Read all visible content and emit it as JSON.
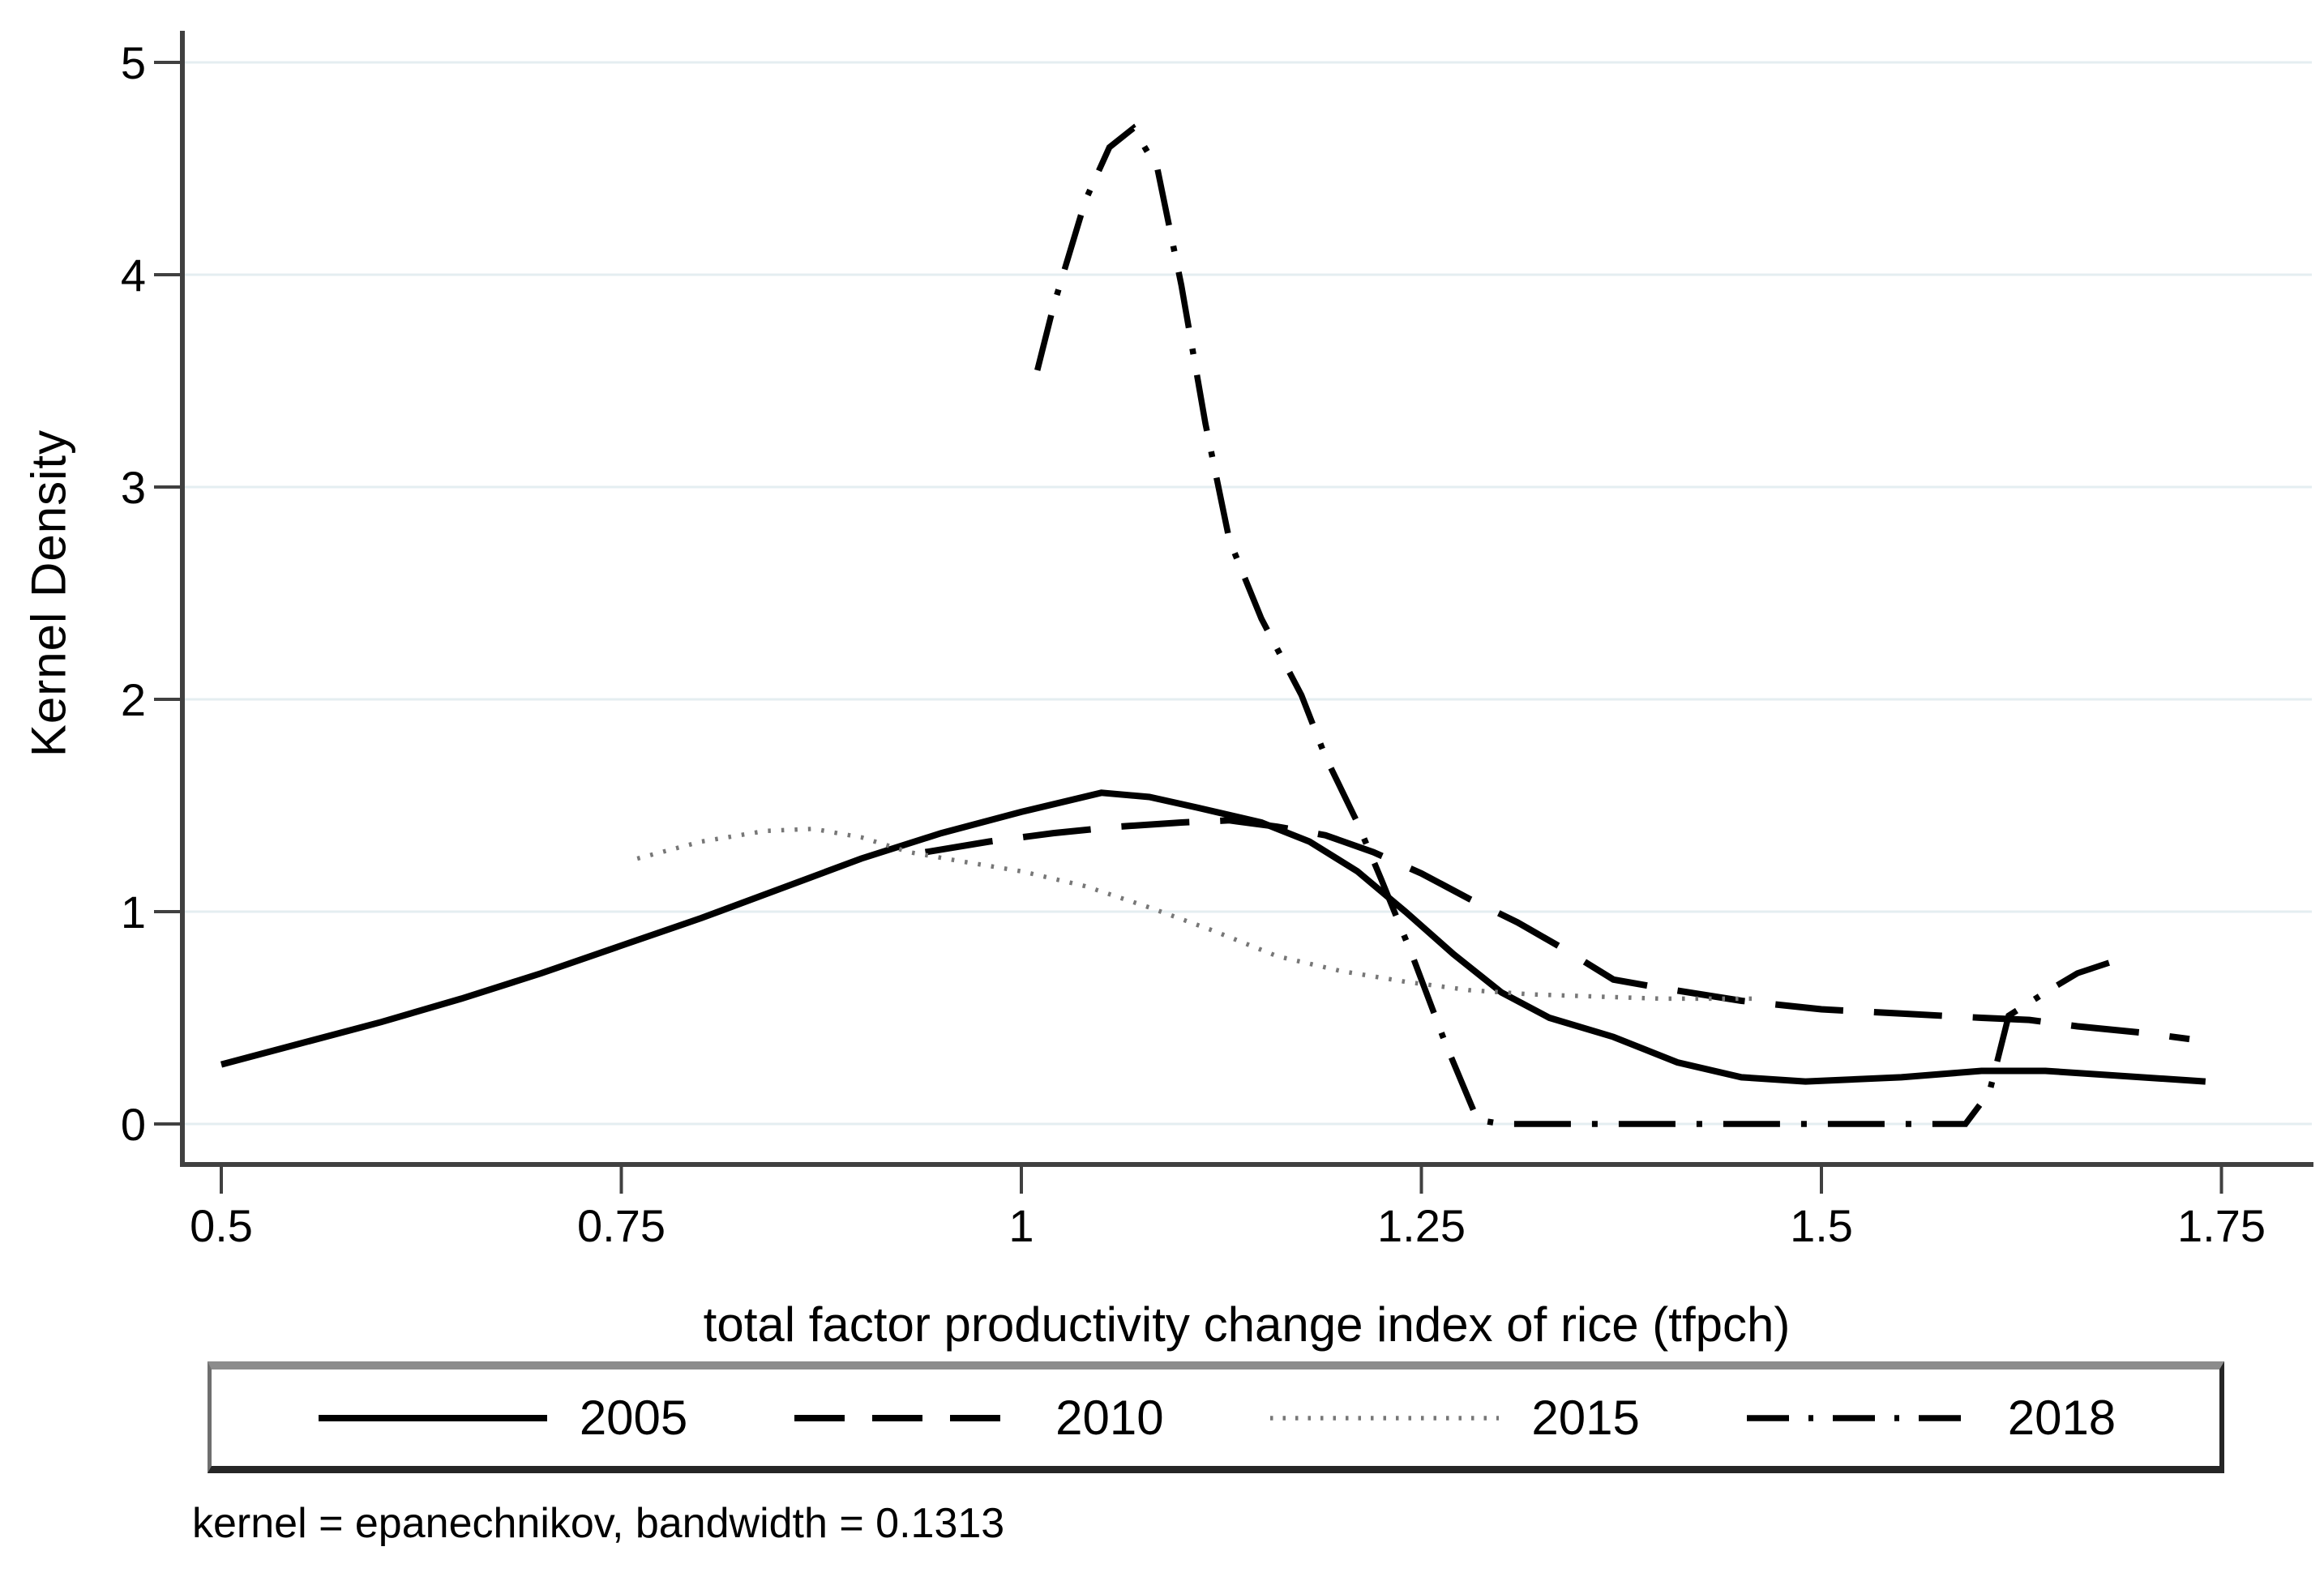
{
  "note": "kernel = epanechnikov, bandwidth = 0.1313",
  "colors": {
    "background": "#ffffff",
    "axis": "#404040",
    "grid": "#e4eef1",
    "text": "#000000",
    "solid_line": "#000000",
    "dotted_line": "#777777"
  },
  "chart_data": {
    "type": "line",
    "title": "",
    "xlabel": "total factor productivity change index of rice (tfpch)",
    "ylabel": "Kernel Density",
    "xlim": [
      0.5,
      1.75
    ],
    "ylim": [
      0,
      5
    ],
    "x_ticks": [
      0.5,
      0.75,
      1,
      1.25,
      1.5,
      1.75
    ],
    "x_tick_labels": [
      "0.5",
      "0.75",
      "1",
      "1.25",
      "1.5",
      "1.75"
    ],
    "y_ticks": [
      0,
      1,
      2,
      3,
      4,
      5
    ],
    "y_tick_labels": [
      "0",
      "1",
      "2",
      "3",
      "4",
      "5"
    ],
    "grid": "horizontal",
    "legend_position": "bottom",
    "series": [
      {
        "name": "2005",
        "dash": "solid",
        "color": "#000000",
        "points": [
          [
            0.5,
            0.28
          ],
          [
            0.55,
            0.38
          ],
          [
            0.6,
            0.48
          ],
          [
            0.65,
            0.59
          ],
          [
            0.7,
            0.71
          ],
          [
            0.75,
            0.84
          ],
          [
            0.8,
            0.97
          ],
          [
            0.85,
            1.11
          ],
          [
            0.9,
            1.25
          ],
          [
            0.95,
            1.37
          ],
          [
            1.0,
            1.47
          ],
          [
            1.05,
            1.56
          ],
          [
            1.08,
            1.54
          ],
          [
            1.11,
            1.49
          ],
          [
            1.15,
            1.42
          ],
          [
            1.18,
            1.33
          ],
          [
            1.21,
            1.19
          ],
          [
            1.24,
            1.0
          ],
          [
            1.27,
            0.8
          ],
          [
            1.3,
            0.62
          ],
          [
            1.33,
            0.5
          ],
          [
            1.37,
            0.41
          ],
          [
            1.41,
            0.29
          ],
          [
            1.45,
            0.22
          ],
          [
            1.49,
            0.2
          ],
          [
            1.55,
            0.22
          ],
          [
            1.6,
            0.25
          ],
          [
            1.64,
            0.25
          ],
          [
            1.68,
            0.23
          ],
          [
            1.74,
            0.2
          ]
        ]
      },
      {
        "name": "2010",
        "dash": "dash",
        "color": "#000000",
        "points": [
          [
            0.94,
            1.28
          ],
          [
            0.98,
            1.33
          ],
          [
            1.02,
            1.37
          ],
          [
            1.06,
            1.4
          ],
          [
            1.1,
            1.42
          ],
          [
            1.13,
            1.43
          ],
          [
            1.16,
            1.4
          ],
          [
            1.19,
            1.36
          ],
          [
            1.22,
            1.28
          ],
          [
            1.25,
            1.18
          ],
          [
            1.28,
            1.06
          ],
          [
            1.31,
            0.95
          ],
          [
            1.34,
            0.82
          ],
          [
            1.37,
            0.68
          ],
          [
            1.4,
            0.64
          ],
          [
            1.45,
            0.58
          ],
          [
            1.5,
            0.54
          ],
          [
            1.55,
            0.52
          ],
          [
            1.6,
            0.5
          ],
          [
            1.63,
            0.49
          ],
          [
            1.66,
            0.46
          ],
          [
            1.7,
            0.43
          ],
          [
            1.73,
            0.4
          ]
        ]
      },
      {
        "name": "2015",
        "dash": "dot",
        "color": "#777777",
        "points": [
          [
            0.76,
            1.25
          ],
          [
            0.8,
            1.33
          ],
          [
            0.84,
            1.38
          ],
          [
            0.87,
            1.39
          ],
          [
            0.9,
            1.35
          ],
          [
            0.93,
            1.28
          ],
          [
            0.96,
            1.24
          ],
          [
            1.0,
            1.19
          ],
          [
            1.04,
            1.12
          ],
          [
            1.08,
            1.02
          ],
          [
            1.12,
            0.91
          ],
          [
            1.16,
            0.79
          ],
          [
            1.2,
            0.72
          ],
          [
            1.24,
            0.67
          ],
          [
            1.28,
            0.63
          ],
          [
            1.32,
            0.61
          ],
          [
            1.36,
            0.6
          ],
          [
            1.4,
            0.59
          ],
          [
            1.46,
            0.59
          ]
        ]
      },
      {
        "name": "2018",
        "dash": "dash-dot",
        "color": "#000000",
        "points": [
          [
            1.01,
            3.55
          ],
          [
            1.02,
            3.85
          ],
          [
            1.04,
            4.35
          ],
          [
            1.055,
            4.6
          ],
          [
            1.07,
            4.69
          ],
          [
            1.085,
            4.5
          ],
          [
            1.1,
            3.95
          ],
          [
            1.115,
            3.3
          ],
          [
            1.13,
            2.75
          ],
          [
            1.15,
            2.38
          ],
          [
            1.175,
            2.02
          ],
          [
            1.19,
            1.73
          ],
          [
            1.21,
            1.42
          ],
          [
            1.225,
            1.15
          ],
          [
            1.245,
            0.78
          ],
          [
            1.265,
            0.38
          ],
          [
            1.285,
            0.02
          ],
          [
            1.3,
            0.0
          ],
          [
            1.59,
            0.0
          ],
          [
            1.605,
            0.15
          ],
          [
            1.617,
            0.51
          ],
          [
            1.64,
            0.62
          ],
          [
            1.66,
            0.71
          ],
          [
            1.68,
            0.76
          ]
        ]
      }
    ]
  }
}
